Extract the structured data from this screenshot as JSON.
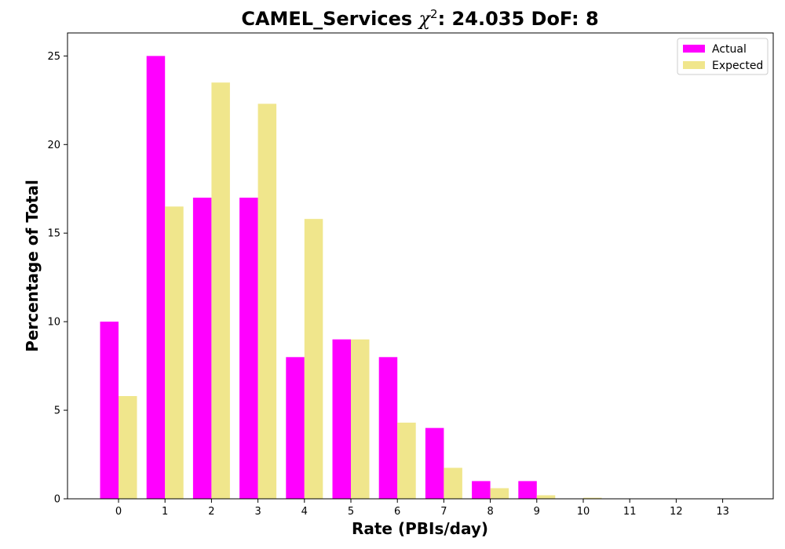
{
  "chart_data": {
    "type": "bar",
    "title_prefix": "CAMEL_Services ",
    "title_chi": "χ",
    "title_exp": "2",
    "title_suffix": ": 24.035 DoF: 8",
    "xlabel": "Rate (PBIs/day)",
    "ylabel": "Percentage of Total",
    "categories": [
      "0",
      "1",
      "2",
      "3",
      "4",
      "5",
      "6",
      "7",
      "8",
      "9",
      "10",
      "11",
      "12",
      "13"
    ],
    "ylim": [
      0,
      26.3
    ],
    "yticks": [
      0,
      5,
      10,
      15,
      20,
      25
    ],
    "legend_position": "top-right",
    "series": [
      {
        "name": "Actual",
        "color": "#ff00ff",
        "values": [
          10,
          25,
          17,
          17,
          8,
          9,
          8,
          4,
          1,
          1,
          0,
          0,
          0,
          0
        ]
      },
      {
        "name": "Expected",
        "color": "#f0e68c",
        "values": [
          5.8,
          16.5,
          23.5,
          22.3,
          15.8,
          9.0,
          4.3,
          1.75,
          0.6,
          0.2,
          0.06,
          0.02,
          0.004,
          0.001
        ]
      }
    ]
  }
}
